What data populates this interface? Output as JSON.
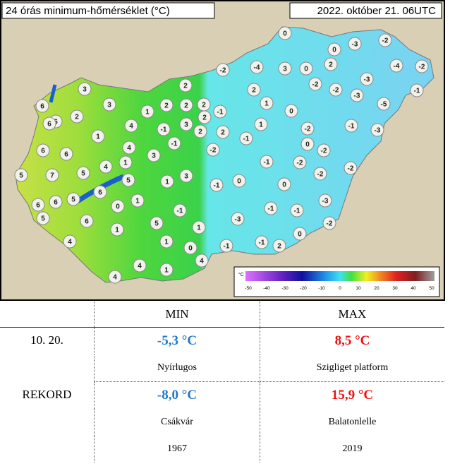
{
  "map": {
    "title": "24 órás minimum-hőmérséklet (°C)",
    "timestamp": "2022. október 21. 06UTC",
    "stations": [
      0,
      0,
      -3,
      -2,
      2,
      -4,
      -2,
      -2,
      -4,
      3,
      0,
      3,
      2,
      -3,
      -2,
      -2,
      -3,
      -1,
      -5,
      2,
      1,
      6,
      6,
      3,
      1,
      2,
      2,
      2,
      -1,
      2,
      0,
      2,
      6,
      4,
      -1,
      3,
      2,
      2,
      1,
      -2,
      -1,
      -3,
      1,
      -1,
      -1,
      0,
      -2,
      6,
      6,
      4,
      3,
      -2,
      -1,
      -2,
      -2,
      4,
      1,
      5,
      7,
      5,
      5,
      -2,
      1,
      3,
      -1,
      0,
      0,
      6,
      5,
      6,
      6,
      0,
      1,
      -3,
      -1,
      -1,
      -1,
      5,
      6,
      -3,
      -2,
      5,
      1,
      1,
      0,
      4,
      1,
      -1,
      -1,
      2,
      0,
      4,
      4,
      1,
      4
    ],
    "scale": {
      "unit": "°C",
      "labels": [
        -50,
        -40,
        -30,
        -20,
        -10,
        0,
        10,
        20,
        30,
        40,
        50
      ]
    }
  },
  "table": {
    "headers": [
      "MIN",
      "MAX"
    ],
    "rows": [
      {
        "label": "10. 20.",
        "min": "-5,3 °C",
        "max": "8,5 °C",
        "min_place": "Nyírlugos",
        "max_place": "Szigliget platform"
      },
      {
        "label": "REKORD",
        "min": "-8,0 °C",
        "max": "15,9 °C",
        "min_place": "Csákvár",
        "max_place": "Balatonlelle",
        "min_year": "1967",
        "max_year": "2019"
      }
    ]
  }
}
